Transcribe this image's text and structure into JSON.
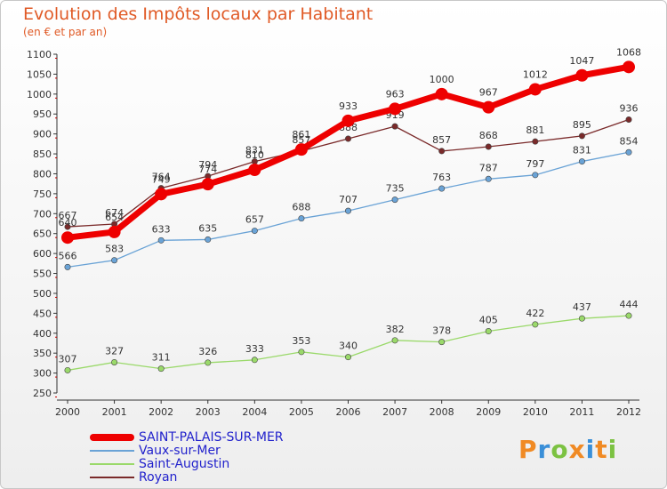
{
  "title": "Evolution des Impôts locaux par Habitant",
  "subtitle": "(en € et par an)",
  "logo": "Proxiti",
  "chart_data": {
    "type": "line",
    "x": [
      "2000",
      "2001",
      "2002",
      "2003",
      "2004",
      "2005",
      "2006",
      "2007",
      "2008",
      "2009",
      "2010",
      "2011",
      "2012"
    ],
    "ylim": [
      250,
      1100
    ],
    "yticks": [
      250,
      300,
      350,
      400,
      450,
      500,
      550,
      600,
      650,
      700,
      750,
      800,
      850,
      900,
      950,
      1000,
      1050,
      1100
    ],
    "grid": false,
    "legend_position": "bottom-left",
    "series": [
      {
        "name": "SAINT-PALAIS-SUR-MER",
        "color": "#ee0000",
        "values": [
          640,
          654,
          749,
          774,
          810,
          861,
          933,
          963,
          1000,
          967,
          1012,
          1047,
          1068
        ]
      },
      {
        "name": "Vaux-sur-Mer",
        "color": "#6aa3d6",
        "values": [
          566,
          583,
          633,
          635,
          657,
          688,
          707,
          735,
          763,
          787,
          797,
          831,
          854
        ]
      },
      {
        "name": "Saint-Augustin",
        "color": "#9ad96a",
        "values": [
          307,
          327,
          311,
          326,
          333,
          353,
          340,
          382,
          378,
          405,
          422,
          437,
          444
        ]
      },
      {
        "name": "Royan",
        "color": "#7a2a2a",
        "values": [
          667,
          674,
          764,
          794,
          831,
          857,
          888,
          919,
          857,
          868,
          881,
          895,
          936
        ]
      }
    ]
  }
}
